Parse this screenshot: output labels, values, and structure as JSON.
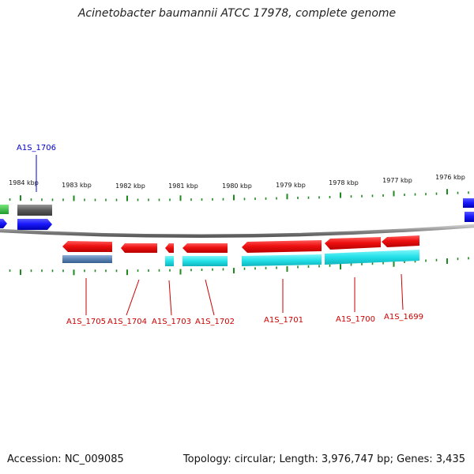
{
  "title": "Acinetobacter baumannii ATCC 17978, complete genome",
  "footer": {
    "accession": "Accession: NC_009085",
    "summary": "Topology: circular; Length: 3,976,747 bp; Genes: 3,435"
  },
  "scale_labels": [
    "1984 kbp",
    "1983 kbp",
    "1982 kbp",
    "1981 kbp",
    "1980 kbp",
    "1979 kbp",
    "1978 kbp",
    "1977 kbp",
    "1976 kbp"
  ],
  "gene_labels": {
    "top": [
      {
        "label": "A1S_1706",
        "color": "#0000cc"
      }
    ],
    "bottom": [
      {
        "label": "A1S_1705",
        "color": "#cc0000"
      },
      {
        "label": "A1S_1704",
        "color": "#cc0000"
      },
      {
        "label": "A1S_1703",
        "color": "#cc0000"
      },
      {
        "label": "A1S_1702",
        "color": "#cc0000"
      },
      {
        "label": "A1S_1701",
        "color": "#cc0000"
      },
      {
        "label": "A1S_1700",
        "color": "#cc0000"
      },
      {
        "label": "A1S_1699",
        "color": "#cc0000"
      }
    ]
  },
  "colors": {
    "forward_cds": "#1a1aff",
    "reverse_cds": "#ee1111",
    "rna_forward": "#6e6e6e",
    "rna_reverse": "#5a82b4",
    "gc_feature": "#22e0e8",
    "other_feature": "#2ecc40",
    "tick": "#1f8a1f",
    "backbone": "#8a8a8a"
  }
}
